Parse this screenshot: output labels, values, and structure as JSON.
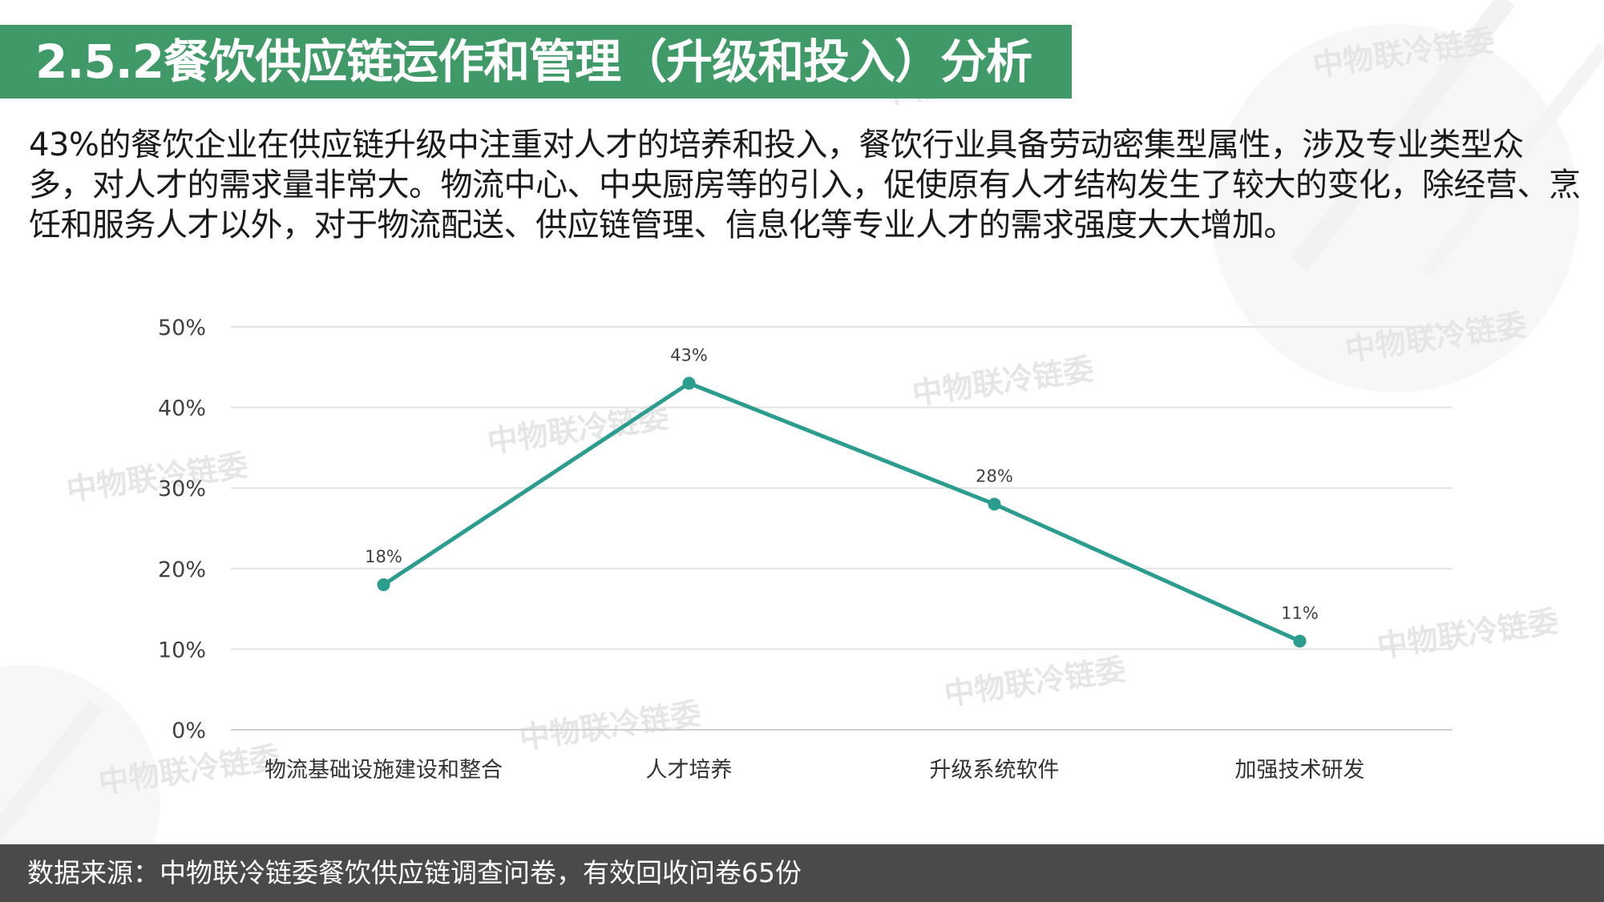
{
  "header": {
    "title": "2.5.2餐饮供应链运作和管理（升级和投入）分析"
  },
  "intro": {
    "text": "43%的餐饮企业在供应链升级中注重对人才的培养和投入，餐饮行业具备劳动密集型属性，涉及专业类型众多，对人才的需求量非常大。物流中心、中央厨房等的引入，促使原有人才结构发生了较大的变化，除经营、烹饪和服务人才以外，对于物流配送、供应链管理、信息化等专业人才的需求强度大大增加。"
  },
  "watermark": {
    "text": "中物联冷链委"
  },
  "chart_data": {
    "type": "line",
    "categories": [
      "物流基础设施建设和整合",
      "人才培养",
      "升级系统软件",
      "加强技术研发"
    ],
    "values": [
      18,
      43,
      28,
      11
    ],
    "data_labels": [
      "18%",
      "43%",
      "28%",
      "11%"
    ],
    "ylim": [
      0,
      50
    ],
    "yticks": [
      0,
      10,
      20,
      30,
      40,
      50
    ],
    "ytick_labels": [
      "0%",
      "10%",
      "20%",
      "30%",
      "40%",
      "50%"
    ],
    "grid": true,
    "line_color": "#2a9d8f"
  },
  "footer": {
    "source": "数据来源：中物联冷链委餐饮供应链调查问卷，有效回收问卷65份"
  }
}
